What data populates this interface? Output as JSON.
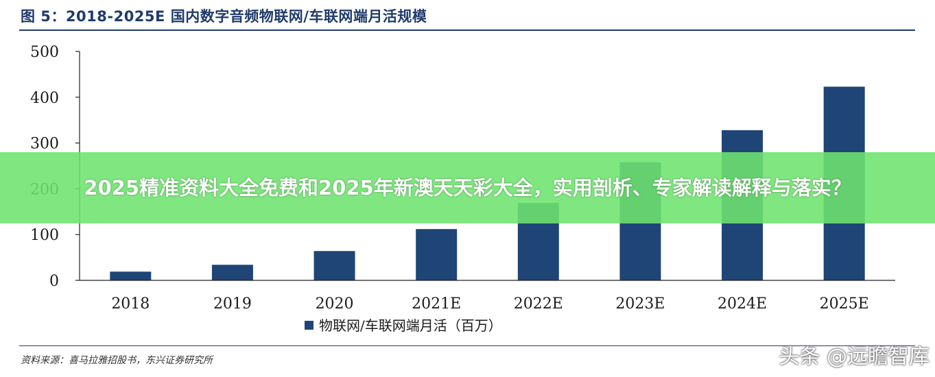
{
  "figure": {
    "title": "图 5：2018-2025E 国内数字音频物联网/车联网端月活规模",
    "source": "资料来源：喜马拉雅招股书，东兴证券研究所",
    "watermark": "头条 @远瞻智库"
  },
  "banner": {
    "text": "2025精准资料大全免费和2025年新澳天天彩大全，实用剖析、专家解读解释与落实？"
  },
  "colors": {
    "bar": "#1f4577",
    "title": "#1f3a6b",
    "banner": "#6ee46e"
  },
  "chart_data": {
    "type": "bar",
    "categories": [
      "2018",
      "2019",
      "2020",
      "2021E",
      "2022E",
      "2023E",
      "2024E",
      "2025E"
    ],
    "series": [
      {
        "name": "物联网/车联网端月活（百万）",
        "values": [
          19,
          34,
          64,
          112,
          169,
          258,
          328,
          423
        ]
      }
    ],
    "ylim": [
      0,
      500
    ],
    "yticks": [
      0,
      100,
      200,
      300,
      400,
      500
    ],
    "legend": "bottom-center",
    "grid": false
  }
}
